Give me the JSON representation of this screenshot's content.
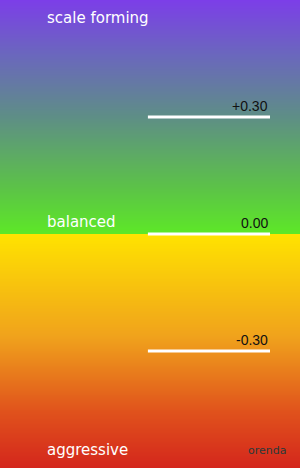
{
  "chart_data": {
    "type": "gradient_scale",
    "annotations": [
      "scale forming",
      "balanced",
      "aggressive",
      "orenda"
    ],
    "ylim": [
      -0.6,
      0.6
    ],
    "yticks": [
      {
        "value": 0.3,
        "label": "+0.30"
      },
      {
        "value": 0,
        "label": "0.00"
      },
      {
        "value": -0.3,
        "label": "-0.30"
      }
    ]
  }
}
